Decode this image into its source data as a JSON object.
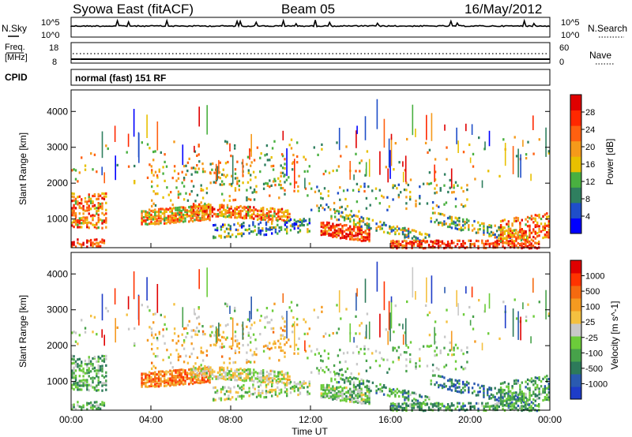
{
  "header": {
    "station": "Syowa East (fitACF)",
    "beam": "Beam 05",
    "date": "16/May/2012"
  },
  "top_panel": {
    "left_label": "N.Sky",
    "right_label": "N.Search",
    "left_ticks": [
      "10^5",
      "10^0"
    ],
    "right_ticks": [
      "10^5",
      "10^0"
    ]
  },
  "freq_panel": {
    "left_label_1": "Freq.",
    "left_label_2": "[MHz]",
    "right_label": "Nave",
    "left_ticks": [
      "18",
      "8"
    ],
    "right_ticks": [
      "60",
      "0"
    ]
  },
  "cpid": {
    "label": "CPID",
    "text": "normal (fast) 151 RF"
  },
  "chart_data": [
    {
      "type": "heatmap",
      "name": "power",
      "ylabel": "Slant Range [km]",
      "yticks": [
        "1000",
        "2000",
        "3000",
        "4000"
      ],
      "ylim": [
        200,
        4600
      ],
      "colorbar_label": "Power [dB]",
      "colorbar_ticks": [
        "4",
        "8",
        "12",
        "16",
        "20",
        "24",
        "28"
      ],
      "colors": [
        "#0000ff",
        "#1f4ec9",
        "#2f7f5f",
        "#49b040",
        "#e8c000",
        "#f59a1a",
        "#ff6010",
        "#ff2800",
        "#e00000"
      ]
    },
    {
      "type": "heatmap",
      "name": "velocity",
      "ylabel": "Slant Range [km]",
      "yticks": [
        "1000",
        "2000",
        "3000",
        "4000"
      ],
      "ylim": [
        200,
        4600
      ],
      "colorbar_label": "Velocity [m s^-1]",
      "colorbar_ticks": [
        "1000",
        "500",
        "100",
        "25",
        "-25",
        "-100",
        "-500",
        "-1000"
      ],
      "colors": [
        "#1e3cc8",
        "#2a5ab0",
        "#2d7a5a",
        "#47a24a",
        "#6ccc3a",
        "#c8c8c8",
        "#f4c040",
        "#f59a20",
        "#f56a10",
        "#ff3300",
        "#e00000"
      ]
    }
  ],
  "xaxis": {
    "ticks": [
      "00:00",
      "04:00",
      "08:00",
      "12:00",
      "16:00",
      "20:00",
      "00:00"
    ],
    "label": "Time UT"
  }
}
